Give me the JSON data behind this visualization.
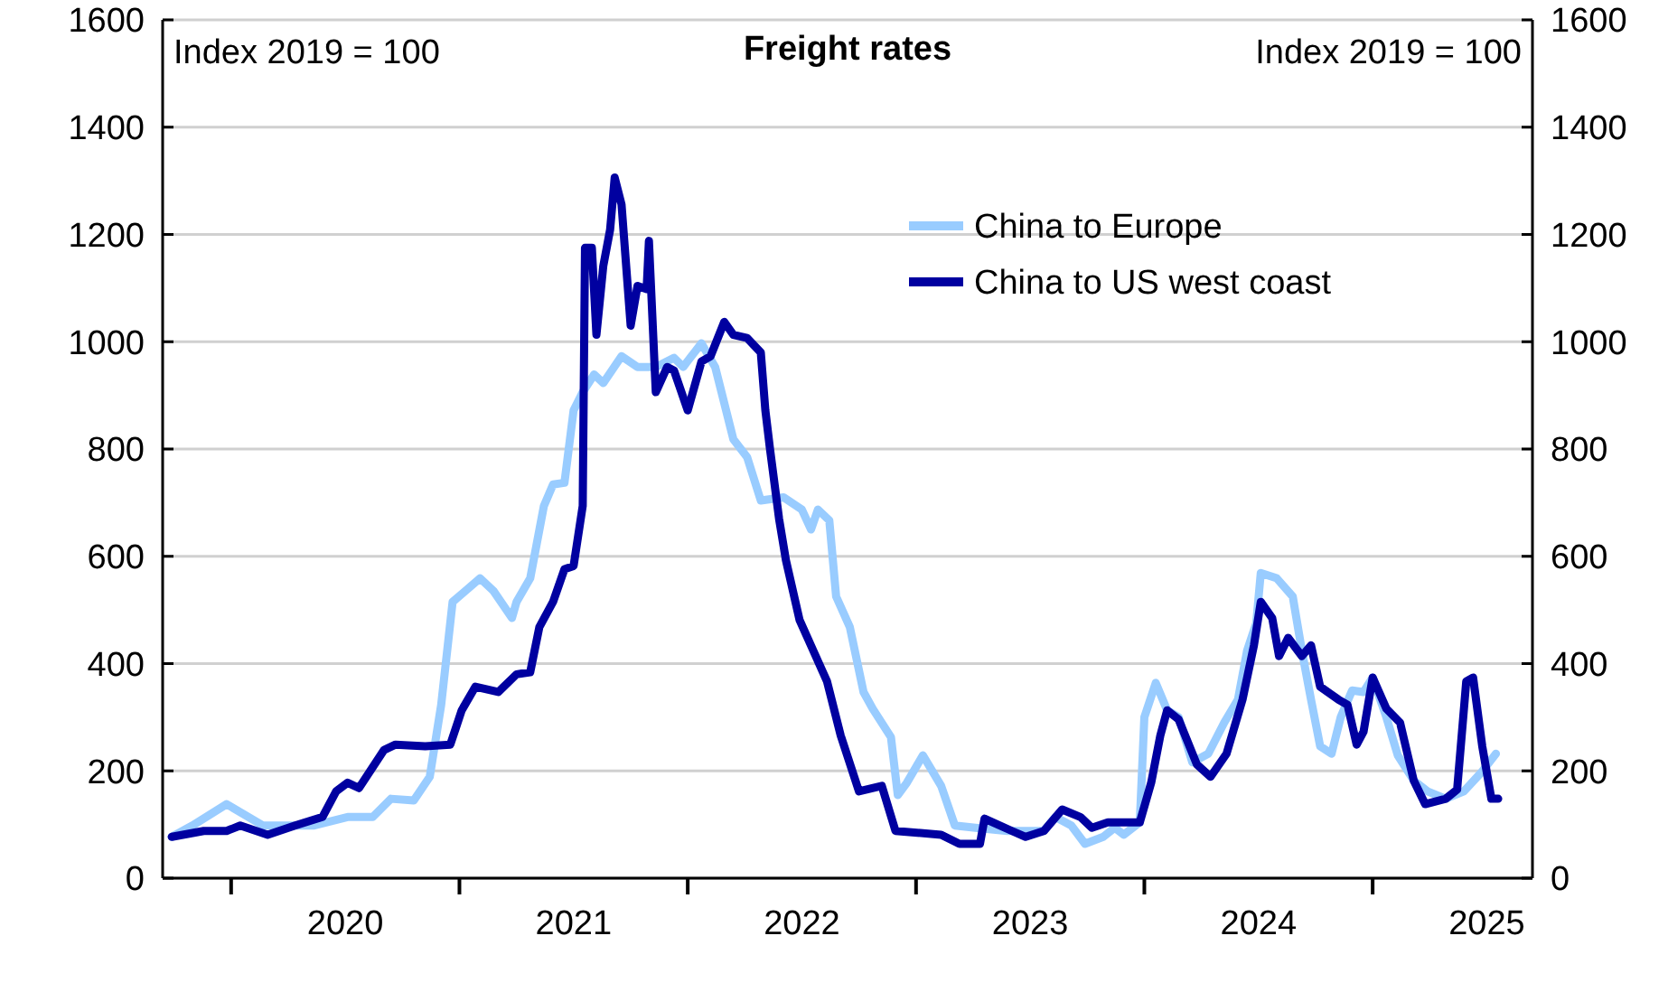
{
  "chart_data": {
    "type": "line",
    "title": "Freight rates",
    "ylabel": "Index 2019 = 100",
    "y2label": "Index 2019 = 100",
    "xlim": [
      2019.7,
      2025.7
    ],
    "xticks": [
      {
        "value": 2020.5,
        "label": "2020"
      },
      {
        "value": 2021.5,
        "label": "2021"
      },
      {
        "value": 2022.5,
        "label": "2022"
      },
      {
        "value": 2023.5,
        "label": "2023"
      },
      {
        "value": 2024.5,
        "label": "2024"
      },
      {
        "value": 2025.5,
        "label": "2025"
      }
    ],
    "ylim": [
      0,
      1600
    ],
    "yticks": [
      0,
      200,
      400,
      600,
      800,
      1000,
      1200,
      1400,
      1600
    ],
    "y2lim": [
      0,
      1600
    ],
    "y2ticks": [
      0,
      200,
      400,
      600,
      800,
      1000,
      1200,
      1400,
      1600
    ],
    "grid": "y",
    "legend": "top right",
    "line_style": "solid",
    "series": [
      {
        "name": "China to Europe",
        "color": "#99ccff",
        "x": [
          2019.74,
          2019.83,
          2019.98,
          2020.14,
          2020.36,
          2020.51,
          2020.62,
          2020.7,
          2020.8,
          2020.87,
          2020.92,
          2020.97,
          2021.09,
          2021.15,
          2021.23,
          2021.25,
          2021.31,
          2021.37,
          2021.41,
          2021.46,
          2021.5,
          2021.54,
          2021.59,
          2021.63,
          2021.71,
          2021.78,
          2021.86,
          2021.94,
          2021.98,
          2022.06,
          2022.12,
          2022.2,
          2022.26,
          2022.32,
          2022.42,
          2022.5,
          2022.54,
          2022.57,
          2022.62,
          2022.65,
          2022.71,
          2022.77,
          2022.81,
          2022.89,
          2022.92,
          2022.96,
          2023.03,
          2023.11,
          2023.17,
          2023.26,
          2023.4,
          2023.56,
          2023.61,
          2023.68,
          2023.74,
          2023.82,
          2023.87,
          2023.91,
          2023.98,
          2024.0,
          2024.05,
          2024.1,
          2024.15,
          2024.21,
          2024.28,
          2024.35,
          2024.41,
          2024.45,
          2024.49,
          2024.51,
          2024.58,
          2024.65,
          2024.69,
          2024.73,
          2024.77,
          2024.82,
          2024.86,
          2024.91,
          2024.96,
          2025.0,
          2025.06,
          2025.11,
          2025.18,
          2025.24,
          2025.32,
          2025.4,
          2025.48,
          2025.54
        ],
        "values": [
          77,
          98,
          138,
          98,
          98,
          114,
          114,
          148,
          145,
          189,
          323,
          515,
          559,
          535,
          485,
          515,
          559,
          694,
          734,
          737,
          872,
          906,
          939,
          923,
          973,
          953,
          953,
          970,
          953,
          997,
          953,
          818,
          785,
          704,
          710,
          687,
          650,
          687,
          667,
          525,
          468,
          347,
          316,
          263,
          155,
          178,
          229,
          172,
          98,
          94,
          88,
          88,
          114,
          98,
          64,
          77,
          94,
          81,
          104,
          300,
          364,
          313,
          300,
          216,
          232,
          290,
          333,
          424,
          475,
          569,
          559,
          525,
          424,
          333,
          246,
          232,
          300,
          350,
          347,
          374,
          300,
          229,
          182,
          162,
          148,
          162,
          199,
          232
        ]
      },
      {
        "name": "China to US west coast",
        "color": "#0000a0",
        "x": [
          2019.74,
          2019.88,
          2019.98,
          2020.04,
          2020.16,
          2020.28,
          2020.4,
          2020.46,
          2020.51,
          2020.56,
          2020.67,
          2020.72,
          2020.85,
          2020.96,
          2021.01,
          2021.07,
          2021.17,
          2021.25,
          2021.31,
          2021.35,
          2021.41,
          2021.46,
          2021.5,
          2021.54,
          2021.55,
          2021.58,
          2021.6,
          2021.63,
          2021.66,
          2021.68,
          2021.71,
          2021.75,
          2021.78,
          2021.82,
          2021.83,
          2021.86,
          2021.91,
          2021.94,
          2022.0,
          2022.06,
          2022.1,
          2022.16,
          2022.2,
          2022.26,
          2022.32,
          2022.34,
          2022.36,
          2022.4,
          2022.43,
          2022.49,
          2022.55,
          2022.61,
          2022.67,
          2022.75,
          2022.85,
          2022.91,
          2023.11,
          2023.19,
          2023.28,
          2023.3,
          2023.42,
          2023.48,
          2023.56,
          2023.64,
          2023.72,
          2023.77,
          2023.84,
          2023.98,
          2024.03,
          2024.07,
          2024.1,
          2024.15,
          2024.23,
          2024.29,
          2024.36,
          2024.43,
          2024.48,
          2024.51,
          2024.56,
          2024.59,
          2024.63,
          2024.69,
          2024.73,
          2024.77,
          2024.85,
          2024.89,
          2024.93,
          2024.96,
          2025.0,
          2025.06,
          2025.12,
          2025.18,
          2025.23,
          2025.32,
          2025.37,
          2025.41,
          2025.44,
          2025.48,
          2025.52,
          2025.55
        ],
        "values": [
          77,
          88,
          88,
          98,
          81,
          98,
          114,
          162,
          178,
          168,
          239,
          249,
          246,
          249,
          313,
          357,
          347,
          380,
          384,
          468,
          515,
          576,
          582,
          694,
          1175,
          1175,
          1013,
          1141,
          1209,
          1306,
          1256,
          1030,
          1104,
          1098,
          1188,
          906,
          953,
          946,
          872,
          963,
          973,
          1037,
          1013,
          1007,
          980,
          872,
          801,
          670,
          593,
          481,
          424,
          367,
          266,
          162,
          172,
          88,
          81,
          64,
          64,
          111,
          88,
          77,
          88,
          128,
          114,
          94,
          104,
          104,
          178,
          266,
          313,
          296,
          212,
          189,
          232,
          333,
          434,
          515,
          485,
          414,
          448,
          414,
          434,
          357,
          333,
          323,
          249,
          273,
          374,
          316,
          290,
          182,
          138,
          148,
          165,
          367,
          374,
          246,
          148,
          148
        ]
      }
    ]
  }
}
